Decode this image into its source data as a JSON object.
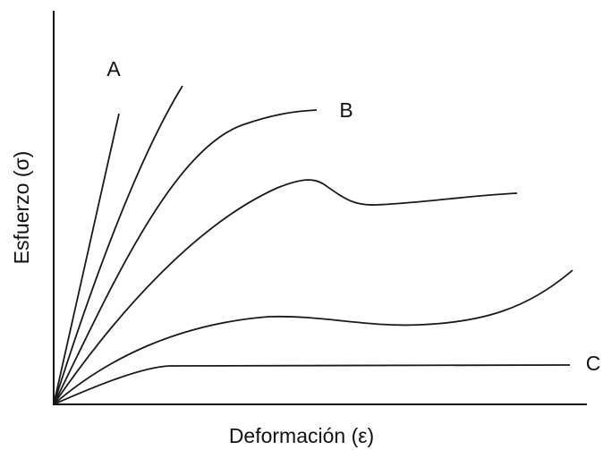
{
  "axes": {
    "x_label": "Deformación (ε)",
    "y_label": "Esfuerzo (σ)"
  },
  "curves": {
    "a_label": "A",
    "b_label": "B",
    "c_label": "C"
  }
}
